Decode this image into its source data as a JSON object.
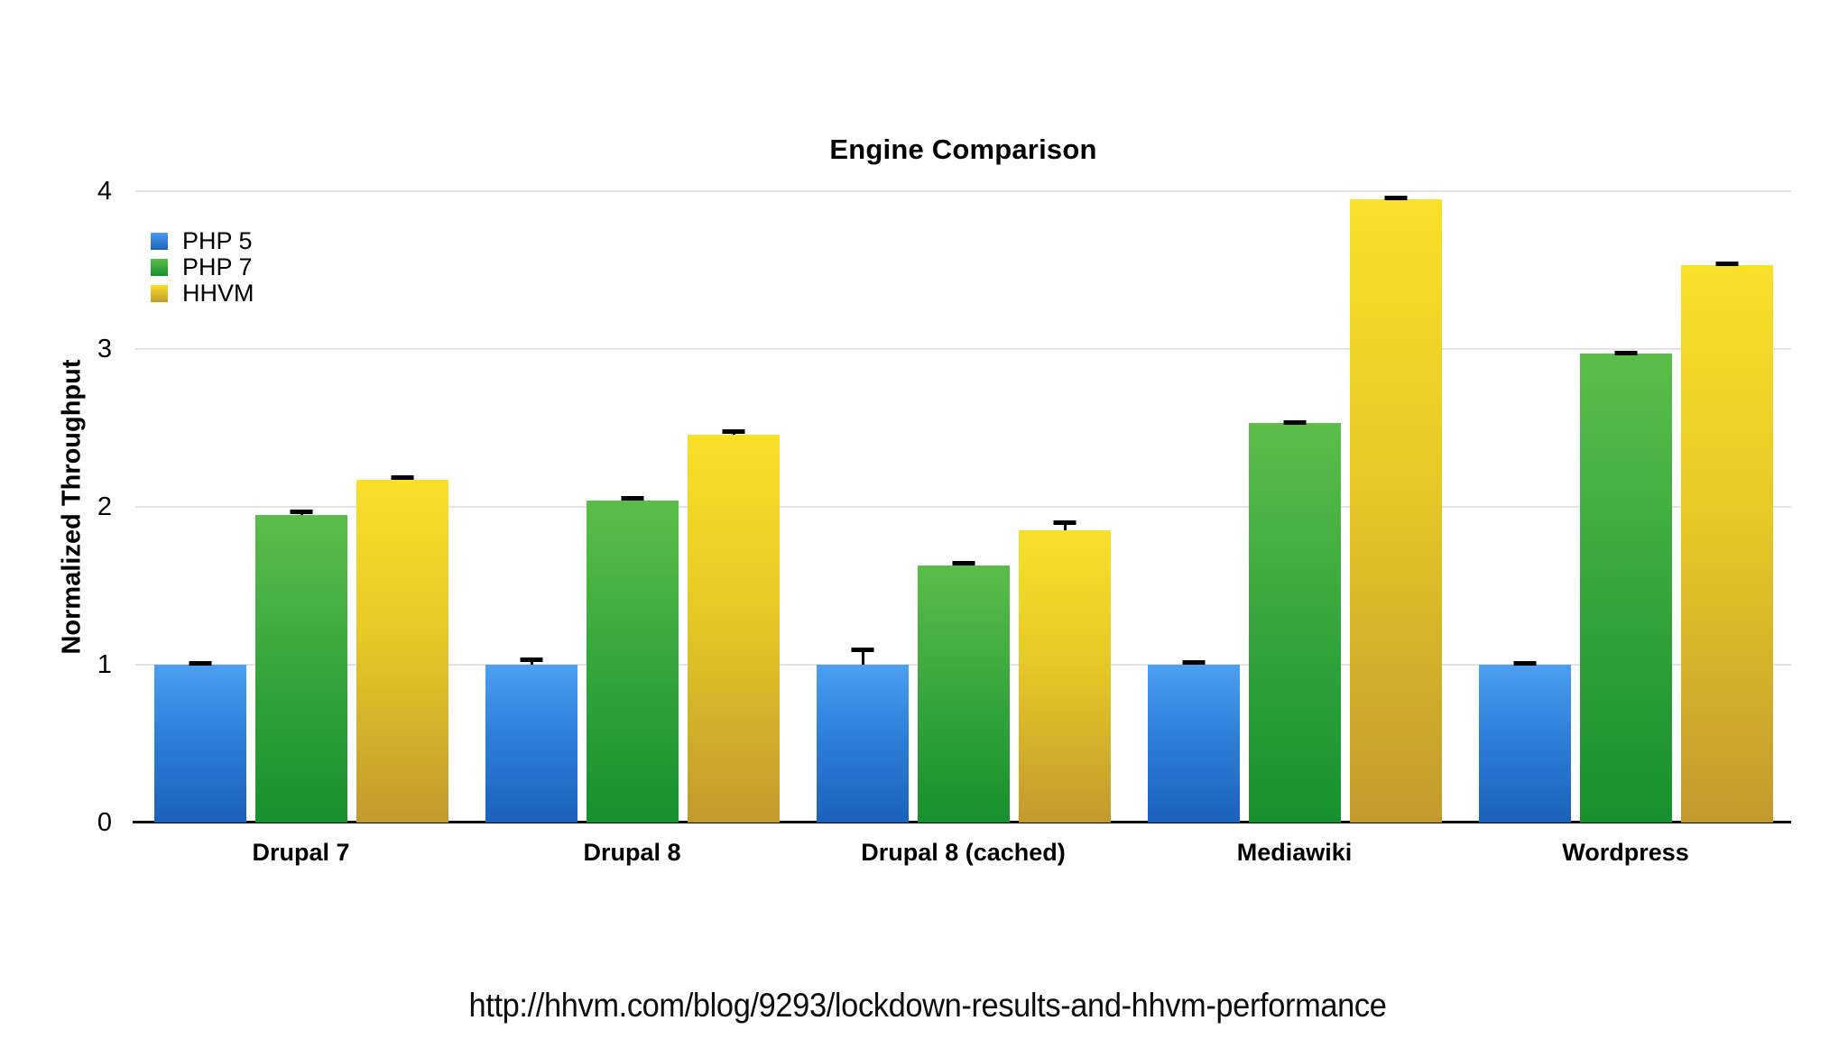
{
  "title": "Engine Comparison",
  "y_axis": {
    "label": "Normalized Throughput",
    "tick_labels": [
      "0",
      "1",
      "2",
      "3",
      "4"
    ]
  },
  "footer": {
    "url": "http://hhvm.com/blog/9293/lockdown-results-and-hhvm-performance"
  },
  "chart_data": {
    "type": "bar",
    "title": "Engine Comparison",
    "categories": [
      "Drupal 7",
      "Drupal 8",
      "Drupal 8 (cached)",
      "Mediawiki",
      "Wordpress"
    ],
    "series": [
      {
        "name": "PHP 5",
        "legend_color": "#2e82e2",
        "gradient": [
          "#4c9ff2",
          "#2e7fd9",
          "#1b61bb"
        ],
        "values": [
          1.0,
          1.0,
          1.0,
          1.0,
          1.0
        ],
        "errors_upper": [
          0.01,
          0.035,
          0.1,
          0.015,
          0.01
        ]
      },
      {
        "name": "PHP 7",
        "legend_color": "#3ca43c",
        "gradient": [
          "#5cbd49",
          "#3aa83e",
          "#17902f"
        ],
        "values": [
          1.95,
          2.04,
          1.63,
          2.53,
          2.97
        ],
        "errors_upper": [
          0.02,
          0.02,
          0.015,
          0.01,
          0.01
        ]
      },
      {
        "name": "HHVM",
        "legend_color": "#e3c71a",
        "gradient": [
          "#f9e02a",
          "#e6c926",
          "#c29a2e"
        ],
        "values": [
          2.17,
          2.46,
          1.85,
          3.95,
          3.53
        ],
        "errors_upper": [
          0.02,
          0.02,
          0.055,
          0.01,
          0.015
        ]
      }
    ],
    "xlabel": "",
    "ylabel": "Normalized Throughput",
    "ylim": [
      0,
      4
    ],
    "y_ticks": [
      0,
      1,
      2,
      3,
      4
    ],
    "grid": true,
    "legend_position": "top-left",
    "error_bars": true,
    "gridline_color": "#e3e3e3",
    "baseline_color": "#0b0b0b"
  }
}
